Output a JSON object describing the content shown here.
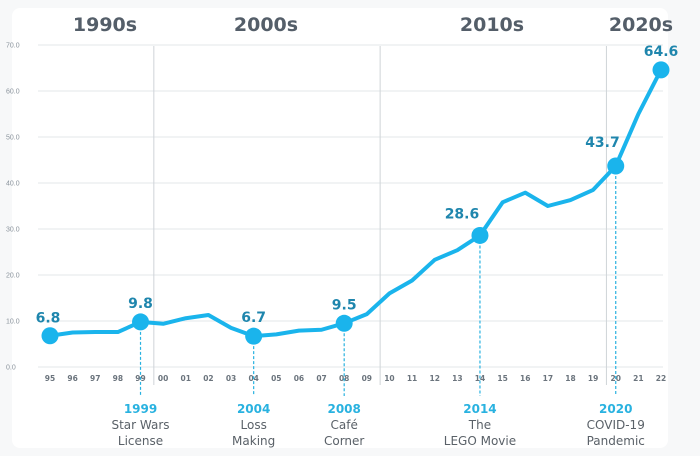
{
  "chart_data": {
    "type": "line",
    "title": "",
    "xlabel": "",
    "ylabel": "",
    "ylim": [
      0,
      70
    ],
    "yticks": [
      "0.0",
      "10.0",
      "20.0",
      "30.0",
      "40.0",
      "50.0",
      "60.0",
      "70.0"
    ],
    "ytick_values": [
      0,
      10,
      20,
      30,
      40,
      50,
      60,
      70
    ],
    "grid": true,
    "legend": "none",
    "x": [
      "95",
      "96",
      "97",
      "98",
      "99",
      "00",
      "01",
      "02",
      "03",
      "04",
      "05",
      "06",
      "07",
      "08",
      "09",
      "10",
      "11",
      "12",
      "13",
      "14",
      "15",
      "16",
      "17",
      "18",
      "19",
      "20",
      "21",
      "22"
    ],
    "series": [
      {
        "name": "value",
        "color": "#1ab4ec",
        "values": [
          6.8,
          7.5,
          7.6,
          7.6,
          9.8,
          9.4,
          10.6,
          11.3,
          8.5,
          6.7,
          7.1,
          7.9,
          8.1,
          9.5,
          11.5,
          16.0,
          18.8,
          23.3,
          25.4,
          28.6,
          35.8,
          37.9,
          35.0,
          36.3,
          38.5,
          43.7,
          55.0,
          64.6
        ]
      }
    ],
    "decades": [
      {
        "label": "1990s",
        "start_index": 0,
        "end_index": 4
      },
      {
        "label": "2000s",
        "start_index": 5,
        "end_index": 14
      },
      {
        "label": "2010s",
        "start_index": 15,
        "end_index": 24
      },
      {
        "label": "2020s",
        "start_index": 25,
        "end_index": 27
      }
    ],
    "decade_dividers_after_index": [
      4,
      14,
      24
    ],
    "highlighted_points": [
      {
        "index": 0,
        "label": "6.8"
      },
      {
        "index": 4,
        "label": "9.8"
      },
      {
        "index": 9,
        "label": "6.7"
      },
      {
        "index": 13,
        "label": "9.5"
      },
      {
        "index": 19,
        "label": "28.6"
      },
      {
        "index": 25,
        "label": "43.7"
      },
      {
        "index": 27,
        "label": "64.6"
      }
    ],
    "annotations": [
      {
        "index": 4,
        "year": "1999",
        "lines": [
          "Star Wars",
          "License"
        ]
      },
      {
        "index": 9,
        "year": "2004",
        "lines": [
          "Loss",
          "Making"
        ]
      },
      {
        "index": 13,
        "year": "2008",
        "lines": [
          "Café",
          "Corner"
        ]
      },
      {
        "index": 19,
        "year": "2014",
        "lines": [
          "The",
          "LEGO Movie"
        ]
      },
      {
        "index": 25,
        "year": "2020",
        "lines": [
          "COVID-19",
          "Pandemic"
        ]
      }
    ]
  },
  "colors": {
    "line": "#1ab4ec",
    "value_label": "#1f86ad",
    "annotation_year": "#29b2e0",
    "annotation_text": "#5a6168",
    "decade_title": "#545e69",
    "grid": "#e3e7ea",
    "divider": "#cfd4d8"
  }
}
